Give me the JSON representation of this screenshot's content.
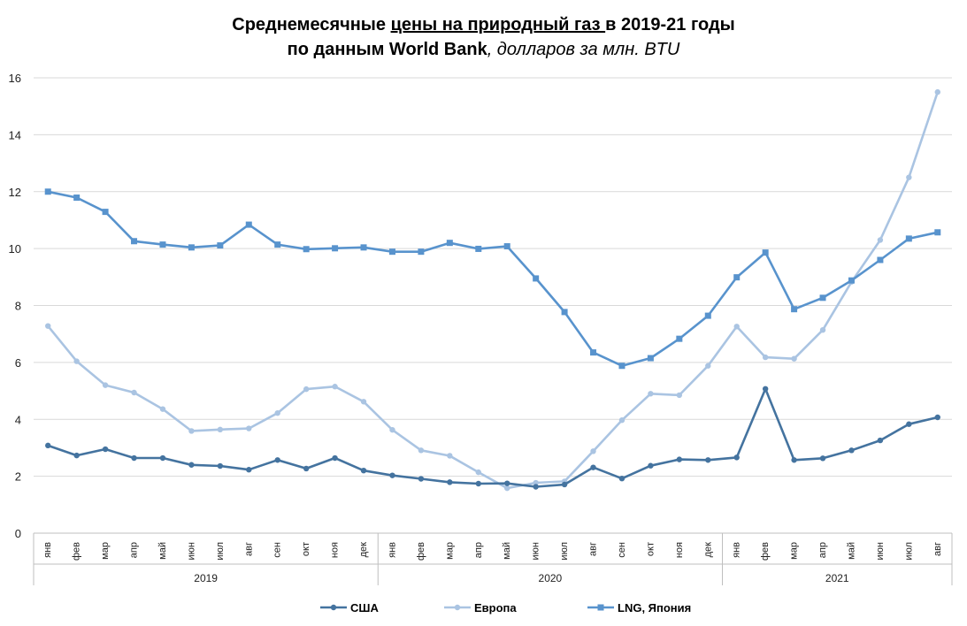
{
  "title": {
    "part1": "Среднемесячные ",
    "part2": "цены на природный газ ",
    "part3": "в 2019-21 годы",
    "part4": "по данным World Bank",
    "part5": ", долларов за млн. BTU"
  },
  "chart_data": {
    "type": "line",
    "title": "Среднемесячные цены на природный газ в 2019-21 годы по данным World Bank, долларов за млн. BTU",
    "ylim": [
      0,
      16
    ],
    "yticks": [
      0,
      2,
      4,
      6,
      8,
      10,
      12,
      14,
      16
    ],
    "grid": true,
    "legend_position": "bottom",
    "months": [
      "янв",
      "фев",
      "мар",
      "апр",
      "май",
      "июн",
      "июл",
      "авг",
      "сен",
      "окт",
      "ноя",
      "дек",
      "янв",
      "фев",
      "мар",
      "апр",
      "май",
      "июн",
      "июл",
      "авг",
      "сен",
      "окт",
      "ноя",
      "дек",
      "янв",
      "фев",
      "мар",
      "апр",
      "май",
      "июн",
      "июл",
      "авг"
    ],
    "years": [
      {
        "label": "2019",
        "months": 12
      },
      {
        "label": "2020",
        "months": 12
      },
      {
        "label": "2021",
        "months": 8
      }
    ],
    "series": [
      {
        "name": "США",
        "color": "#44739f",
        "marker": "circle",
        "values": [
          3.08,
          2.73,
          2.95,
          2.64,
          2.64,
          2.4,
          2.36,
          2.23,
          2.57,
          2.27,
          2.64,
          2.2,
          2.03,
          1.91,
          1.79,
          1.74,
          1.75,
          1.63,
          1.71,
          2.31,
          1.92,
          2.37,
          2.59,
          2.57,
          2.66,
          5.07,
          2.57,
          2.63,
          2.91,
          3.26,
          3.83,
          4.07
        ]
      },
      {
        "name": "Европа",
        "color": "#aac4e2",
        "marker": "circle",
        "values": [
          7.28,
          6.04,
          5.2,
          4.94,
          4.36,
          3.59,
          3.64,
          3.68,
          4.22,
          5.06,
          5.15,
          4.62,
          3.63,
          2.91,
          2.72,
          2.14,
          1.58,
          1.77,
          1.82,
          2.88,
          3.97,
          4.9,
          4.85,
          5.88,
          7.26,
          6.18,
          6.13,
          7.14,
          8.83,
          10.3,
          12.5,
          15.5
        ]
      },
      {
        "name": "LNG, Япония",
        "color": "#5893cd",
        "marker": "square",
        "values": [
          12.0,
          11.79,
          11.29,
          10.26,
          10.14,
          10.04,
          10.11,
          10.84,
          10.14,
          9.98,
          10.01,
          10.04,
          9.89,
          9.89,
          10.2,
          9.99,
          10.08,
          8.95,
          7.77,
          6.35,
          5.88,
          6.15,
          6.83,
          7.64,
          8.99,
          9.86,
          7.87,
          8.27,
          8.88,
          9.6,
          10.35,
          10.57
        ]
      }
    ]
  }
}
